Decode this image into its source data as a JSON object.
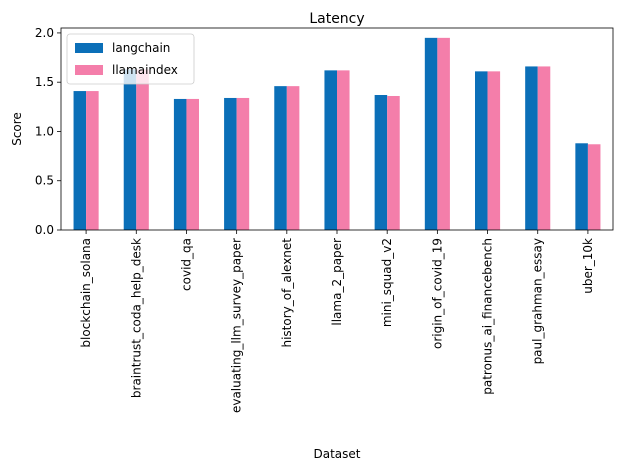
{
  "chart_data": {
    "type": "bar",
    "title": "Latency",
    "xlabel": "Dataset",
    "ylabel": "Score",
    "ylim": [
      0,
      2.05
    ],
    "yticks": [
      "0.0",
      "0.5",
      "1.0",
      "1.5",
      "2.0"
    ],
    "categories": [
      "blockchain_solana",
      "braintrust_coda_help_desk",
      "covid_qa",
      "evaluating_llm_survey_paper",
      "history_of_alexnet",
      "llama_2_paper",
      "mini_squad_v2",
      "origin_of_covid_19",
      "patronus_ai_financebench",
      "paul_grahman_essay",
      "uber_10k"
    ],
    "series": [
      {
        "name": "langchain",
        "color": "#0b6fb8",
        "values": [
          1.41,
          1.63,
          1.33,
          1.34,
          1.46,
          1.62,
          1.37,
          1.95,
          1.61,
          1.66,
          0.88
        ]
      },
      {
        "name": "llamaindex",
        "color": "#f47eaa",
        "values": [
          1.41,
          1.63,
          1.33,
          1.34,
          1.46,
          1.62,
          1.36,
          1.95,
          1.61,
          1.66,
          0.87
        ]
      }
    ],
    "grid": false,
    "legend": "top-left"
  }
}
